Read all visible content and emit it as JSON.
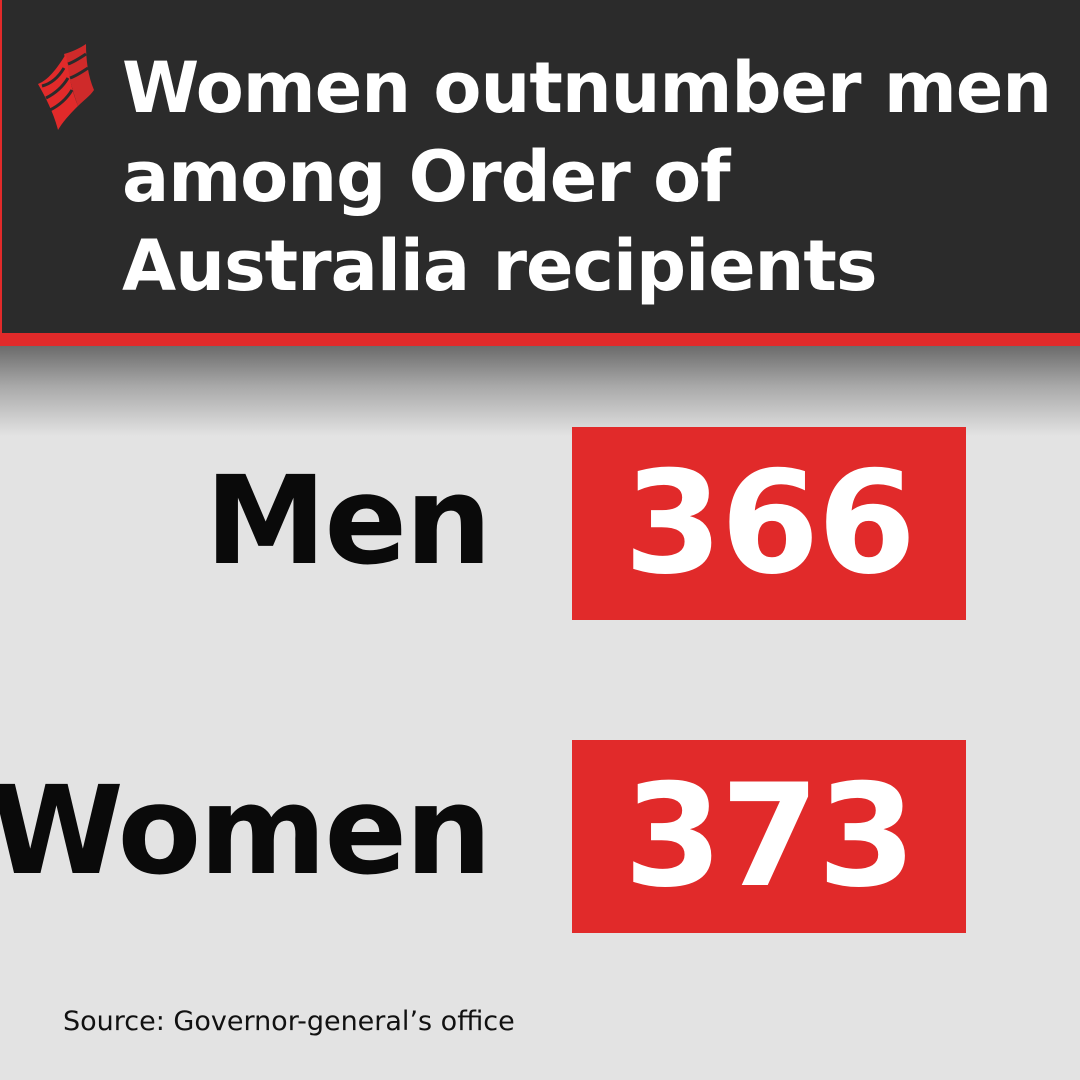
{
  "header": {
    "logo_icon": "sbs-logo-icon",
    "title": "Women outnumber men among Order of Australia recipients"
  },
  "colors": {
    "header_background": "#2b2b2b",
    "accent": "#e12a2a",
    "body_background": "#e3e3e3",
    "label_text": "#0a0a0a",
    "value_text": "#ffffff"
  },
  "rows": [
    {
      "label": "Men",
      "value": "366"
    },
    {
      "label": "Women",
      "value": "373"
    }
  ],
  "footer": {
    "source": "Source: Governor-general’s office"
  }
}
